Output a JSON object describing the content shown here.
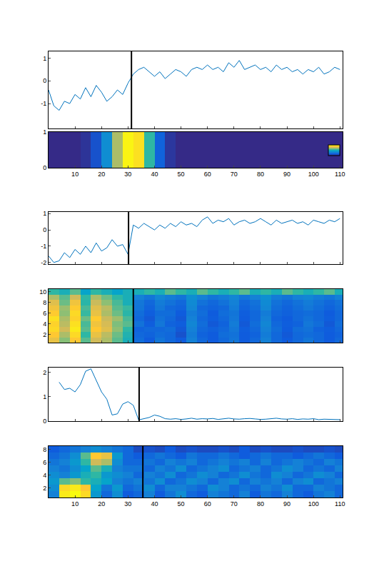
{
  "chart_data": [
    {
      "type": "line",
      "color": "#0072bd",
      "x": [
        0,
        2,
        4,
        6,
        8,
        10,
        12,
        14,
        16,
        18,
        20,
        22,
        24,
        26,
        28,
        30,
        32,
        34,
        36,
        38,
        40,
        42,
        44,
        46,
        48,
        50,
        52,
        54,
        56,
        58,
        60,
        62,
        64,
        66,
        68,
        70,
        72,
        74,
        76,
        78,
        80,
        82,
        84,
        86,
        88,
        90,
        92,
        94,
        96,
        98,
        100,
        102,
        104,
        106,
        108,
        110
      ],
      "values": [
        -0.4,
        -1.1,
        -1.3,
        -0.9,
        -1.0,
        -0.6,
        -0.8,
        -0.3,
        -0.7,
        -0.2,
        -0.5,
        -0.9,
        -0.7,
        -0.4,
        -0.6,
        -0.1,
        0.3,
        0.5,
        0.6,
        0.4,
        0.2,
        0.4,
        0.1,
        0.3,
        0.5,
        0.4,
        0.2,
        0.5,
        0.6,
        0.5,
        0.7,
        0.5,
        0.6,
        0.4,
        0.8,
        0.6,
        0.9,
        0.5,
        0.6,
        0.7,
        0.5,
        0.6,
        0.4,
        0.7,
        0.5,
        0.6,
        0.4,
        0.5,
        0.3,
        0.5,
        0.4,
        0.6,
        0.3,
        0.4,
        0.6,
        0.5
      ],
      "xlim": [
        0,
        111
      ],
      "xticks": [
        10,
        20,
        30,
        40,
        50,
        60,
        70,
        80,
        90,
        100,
        110
      ],
      "ylim": [
        -2.1,
        1.3
      ],
      "yticks": [
        -1,
        0,
        1
      ],
      "change_point": 31.3,
      "tick_labels": "y"
    },
    {
      "type": "heatmap",
      "x": [
        2,
        6,
        10,
        14,
        18,
        22,
        26,
        30,
        34,
        38,
        42,
        46,
        50,
        54,
        58,
        62,
        66,
        70,
        74,
        78,
        82,
        86,
        90,
        94,
        98,
        102,
        106,
        110
      ],
      "y": [
        0.5
      ],
      "z": [
        [
          0,
          0,
          0,
          0.03,
          0.12,
          0.35,
          0.7,
          0.98,
          0.92,
          0.55,
          0.18,
          0.04,
          0,
          0,
          0,
          0,
          0,
          0,
          0,
          0,
          0,
          0,
          0,
          0,
          0,
          0,
          0,
          0
        ]
      ],
      "colorbar_range": [
        0,
        1
      ],
      "xlim": [
        0,
        111
      ],
      "xticks": [
        10,
        20,
        30,
        40,
        50,
        60,
        70,
        80,
        90,
        100,
        110
      ],
      "ylim": [
        0,
        1
      ],
      "yticks": [
        0,
        1
      ],
      "tick_labels": true
    },
    {
      "type": "line",
      "color": "#0072bd",
      "x": [
        0,
        2,
        4,
        6,
        8,
        10,
        12,
        14,
        16,
        18,
        20,
        22,
        24,
        26,
        28,
        30,
        32,
        34,
        36,
        38,
        40,
        42,
        44,
        46,
        48,
        50,
        52,
        54,
        56,
        58,
        60,
        62,
        64,
        66,
        68,
        70,
        72,
        74,
        76,
        78,
        80,
        82,
        84,
        86,
        88,
        90,
        92,
        94,
        96,
        98,
        100,
        102,
        104,
        106,
        108,
        110
      ],
      "values": [
        -1.6,
        -2.0,
        -1.9,
        -1.4,
        -1.7,
        -1.2,
        -1.5,
        -1.0,
        -1.4,
        -0.8,
        -1.3,
        -1.1,
        -0.6,
        -1.0,
        -0.9,
        -1.5,
        0.3,
        0.1,
        0.4,
        0.2,
        0.0,
        0.3,
        0.1,
        0.4,
        0.2,
        0.5,
        0.3,
        0.4,
        0.2,
        0.6,
        0.8,
        0.4,
        0.6,
        0.5,
        0.7,
        0.3,
        0.5,
        0.6,
        0.4,
        0.5,
        0.7,
        0.5,
        0.3,
        0.6,
        0.4,
        0.5,
        0.6,
        0.4,
        0.5,
        0.3,
        0.6,
        0.5,
        0.4,
        0.6,
        0.5,
        0.7
      ],
      "xlim": [
        0,
        111
      ],
      "xticks": [
        10,
        20,
        30,
        40,
        50,
        60,
        70,
        80,
        90,
        100,
        110
      ],
      "ylim": [
        -2.1,
        1.1
      ],
      "yticks": [
        -2,
        -1,
        0,
        1
      ],
      "change_point": 30.2,
      "tick_labels": "y"
    },
    {
      "type": "heatmap",
      "x": [
        2,
        6,
        10,
        14,
        18,
        22,
        26,
        30,
        34,
        38,
        42,
        46,
        50,
        54,
        58,
        62,
        66,
        70,
        74,
        78,
        82,
        86,
        90,
        94,
        98,
        102,
        106,
        110
      ],
      "y": [
        1,
        2,
        3,
        4,
        5,
        6,
        7,
        8,
        9,
        10
      ],
      "z": [
        [
          0.8,
          0.65,
          0.85,
          0.6,
          0.75,
          0.7,
          0.6,
          0.5,
          0.22,
          0.15,
          0.25,
          0.2,
          0.15,
          0.3,
          0.2,
          0.15,
          0.2,
          0.25,
          0.15,
          0.2,
          0.3,
          0.2,
          0.15,
          0.2,
          0.25,
          0.2,
          0.15,
          0.2
        ],
        [
          0.85,
          0.7,
          0.9,
          0.55,
          0.8,
          0.72,
          0.62,
          0.52,
          0.2,
          0.18,
          0.22,
          0.2,
          0.12,
          0.28,
          0.18,
          0.15,
          0.22,
          0.24,
          0.15,
          0.18,
          0.28,
          0.2,
          0.14,
          0.2,
          0.22,
          0.2,
          0.15,
          0.18
        ],
        [
          0.9,
          0.75,
          0.95,
          0.6,
          0.85,
          0.78,
          0.66,
          0.55,
          0.18,
          0.2,
          0.2,
          0.22,
          0.14,
          0.3,
          0.2,
          0.17,
          0.2,
          0.26,
          0.16,
          0.2,
          0.3,
          0.22,
          0.15,
          0.22,
          0.24,
          0.18,
          0.16,
          0.2
        ],
        [
          0.88,
          0.72,
          0.92,
          0.58,
          0.82,
          0.76,
          0.64,
          0.6,
          0.24,
          0.16,
          0.26,
          0.18,
          0.16,
          0.32,
          0.22,
          0.14,
          0.18,
          0.28,
          0.14,
          0.22,
          0.32,
          0.2,
          0.16,
          0.18,
          0.26,
          0.22,
          0.14,
          0.22
        ],
        [
          0.92,
          0.7,
          0.88,
          0.62,
          0.86,
          0.74,
          0.68,
          0.58,
          0.2,
          0.14,
          0.24,
          0.2,
          0.14,
          0.3,
          0.2,
          0.16,
          0.2,
          0.26,
          0.15,
          0.2,
          0.3,
          0.18,
          0.15,
          0.2,
          0.24,
          0.2,
          0.16,
          0.2
        ],
        [
          0.86,
          0.66,
          0.9,
          0.56,
          0.8,
          0.7,
          0.62,
          0.54,
          0.22,
          0.16,
          0.22,
          0.22,
          0.15,
          0.28,
          0.22,
          0.15,
          0.22,
          0.25,
          0.16,
          0.2,
          0.28,
          0.2,
          0.17,
          0.2,
          0.22,
          0.2,
          0.15,
          0.2
        ],
        [
          0.82,
          0.68,
          0.86,
          0.58,
          0.78,
          0.72,
          0.6,
          0.56,
          0.25,
          0.18,
          0.26,
          0.2,
          0.18,
          0.32,
          0.2,
          0.18,
          0.2,
          0.28,
          0.18,
          0.22,
          0.32,
          0.22,
          0.18,
          0.22,
          0.26,
          0.22,
          0.18,
          0.22
        ],
        [
          0.78,
          0.62,
          0.82,
          0.54,
          0.74,
          0.66,
          0.58,
          0.5,
          0.26,
          0.2,
          0.28,
          0.24,
          0.2,
          0.34,
          0.24,
          0.2,
          0.24,
          0.3,
          0.2,
          0.24,
          0.34,
          0.24,
          0.2,
          0.24,
          0.28,
          0.24,
          0.2,
          0.24
        ],
        [
          0.7,
          0.6,
          0.75,
          0.55,
          0.7,
          0.62,
          0.55,
          0.5,
          0.3,
          0.25,
          0.32,
          0.28,
          0.25,
          0.36,
          0.3,
          0.25,
          0.28,
          0.32,
          0.25,
          0.3,
          0.36,
          0.28,
          0.25,
          0.3,
          0.32,
          0.28,
          0.25,
          0.3
        ],
        [
          0.55,
          0.5,
          0.6,
          0.45,
          0.55,
          0.5,
          0.45,
          0.5,
          0.5,
          0.55,
          0.5,
          0.6,
          0.55,
          0.5,
          0.6,
          0.55,
          0.5,
          0.55,
          0.6,
          0.5,
          0.55,
          0.5,
          0.6,
          0.55,
          0.5,
          0.55,
          0.6,
          0.5
        ]
      ],
      "zlim": [
        0,
        1
      ],
      "xlim": [
        0,
        111
      ],
      "xticks": [
        10,
        20,
        30,
        40,
        50,
        60,
        70,
        80,
        90,
        100,
        110
      ],
      "ylim": [
        0.5,
        10.5
      ],
      "yticks": [
        2,
        4,
        6,
        8,
        10
      ],
      "change_point": 32,
      "tick_labels": "y"
    },
    {
      "type": "line",
      "color": "#0072bd",
      "x": [
        0,
        2,
        4,
        6,
        8,
        10,
        12,
        14,
        16,
        18,
        20,
        22,
        24,
        26,
        28,
        30,
        32,
        34,
        36,
        38,
        40,
        42,
        44,
        46,
        48,
        50,
        52,
        54,
        56,
        58,
        60,
        62,
        64,
        66,
        68,
        70,
        72,
        74,
        76,
        78,
        80,
        82,
        84,
        86,
        88,
        90,
        92,
        94,
        96,
        98,
        100,
        102,
        104,
        106,
        108,
        110
      ],
      "values": [
        null,
        null,
        1.6,
        1.3,
        1.35,
        1.2,
        1.5,
        2.05,
        2.15,
        1.7,
        1.2,
        0.9,
        0.25,
        0.3,
        0.7,
        0.8,
        0.65,
        0.05,
        0.1,
        0.15,
        0.25,
        0.2,
        0.1,
        0.08,
        0.1,
        0.07,
        0.09,
        0.12,
        0.08,
        0.1,
        0.09,
        0.11,
        0.07,
        0.1,
        0.12,
        0.09,
        0.08,
        0.1,
        0.11,
        0.09,
        0.07,
        0.08,
        0.1,
        0.12,
        0.09,
        0.08,
        0.1,
        0.07,
        0.09,
        0.08,
        0.1,
        0.06,
        0.08,
        0.07,
        0.05,
        0.06
      ],
      "xlim": [
        0,
        111
      ],
      "xticks": [
        10,
        20,
        30,
        40,
        50,
        60,
        70,
        80,
        90,
        100,
        110
      ],
      "ylim": [
        0,
        2.2
      ],
      "yticks": [
        0,
        1,
        2
      ],
      "change_point": 34.2,
      "tick_labels": "y"
    },
    {
      "type": "heatmap",
      "x": [
        2,
        6,
        10,
        14,
        18,
        22,
        26,
        30,
        34,
        38,
        42,
        46,
        50,
        54,
        58,
        62,
        66,
        70,
        74,
        78,
        82,
        86,
        90,
        94,
        98,
        102,
        106,
        110
      ],
      "y": [
        1,
        2,
        3,
        4,
        5,
        6,
        7,
        8
      ],
      "z": [
        [
          0.3,
          0.95,
          1.0,
          0.9,
          0.4,
          0.2,
          0.35,
          0.15,
          0.2,
          0.3,
          0.15,
          0.25,
          0.35,
          0.2,
          0.15,
          0.3,
          0.25,
          0.2,
          0.3,
          0.15,
          0.25,
          0.2,
          0.3,
          0.2,
          0.15,
          0.25,
          0.3,
          0.2
        ],
        [
          0.35,
          0.9,
          0.95,
          0.85,
          0.45,
          0.25,
          0.4,
          0.2,
          0.25,
          0.35,
          0.2,
          0.3,
          0.3,
          0.25,
          0.2,
          0.35,
          0.3,
          0.2,
          0.25,
          0.2,
          0.3,
          0.25,
          0.35,
          0.2,
          0.2,
          0.3,
          0.25,
          0.2
        ],
        [
          0.4,
          0.6,
          0.65,
          0.55,
          0.5,
          0.45,
          0.3,
          0.25,
          0.3,
          0.25,
          0.35,
          0.2,
          0.25,
          0.35,
          0.3,
          0.2,
          0.3,
          0.35,
          0.2,
          0.3,
          0.25,
          0.3,
          0.2,
          0.3,
          0.35,
          0.2,
          0.25,
          0.3
        ],
        [
          0.35,
          0.3,
          0.4,
          0.5,
          0.55,
          0.4,
          0.35,
          0.3,
          0.2,
          0.3,
          0.25,
          0.35,
          0.2,
          0.25,
          0.35,
          0.3,
          0.2,
          0.25,
          0.35,
          0.25,
          0.2,
          0.35,
          0.3,
          0.2,
          0.25,
          0.35,
          0.3,
          0.2
        ],
        [
          0.3,
          0.25,
          0.35,
          0.45,
          0.6,
          0.5,
          0.3,
          0.25,
          0.25,
          0.2,
          0.3,
          0.25,
          0.35,
          0.2,
          0.25,
          0.3,
          0.35,
          0.2,
          0.25,
          0.3,
          0.2,
          0.25,
          0.35,
          0.3,
          0.2,
          0.25,
          0.2,
          0.3
        ],
        [
          0.25,
          0.3,
          0.4,
          0.55,
          0.75,
          0.7,
          0.35,
          0.2,
          0.2,
          0.25,
          0.2,
          0.3,
          0.25,
          0.3,
          0.2,
          0.25,
          0.3,
          0.25,
          0.3,
          0.2,
          0.3,
          0.2,
          0.25,
          0.3,
          0.25,
          0.2,
          0.3,
          0.25
        ],
        [
          0.2,
          0.25,
          0.35,
          0.6,
          0.85,
          0.8,
          0.4,
          0.2,
          0.15,
          0.2,
          0.25,
          0.2,
          0.15,
          0.25,
          0.2,
          0.2,
          0.25,
          0.2,
          0.15,
          0.2,
          0.25,
          0.2,
          0.2,
          0.15,
          0.2,
          0.25,
          0.2,
          0.15
        ],
        [
          0.15,
          0.2,
          0.25,
          0.3,
          0.35,
          0.3,
          0.25,
          0.2,
          0.1,
          0.12,
          0.1,
          0.15,
          0.1,
          0.12,
          0.1,
          0.1,
          0.12,
          0.1,
          0.15,
          0.1,
          0.12,
          0.1,
          0.1,
          0.12,
          0.1,
          0.1,
          0.12,
          0.1
        ]
      ],
      "zlim": [
        0,
        1
      ],
      "xlim": [
        0,
        111
      ],
      "xticks": [
        10,
        20,
        30,
        40,
        50,
        60,
        70,
        80,
        90,
        100,
        110
      ],
      "ylim": [
        0.5,
        8.5
      ],
      "yticks": [
        2,
        4,
        6,
        8
      ],
      "change_point": 35.6,
      "tick_labels": true
    }
  ]
}
